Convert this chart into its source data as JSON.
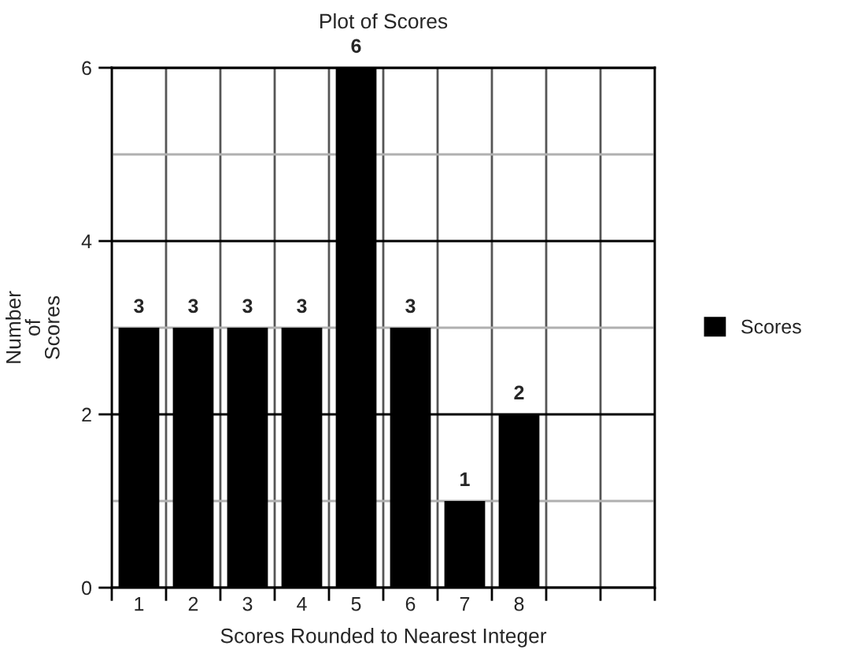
{
  "chart_data": {
    "type": "bar",
    "title": "Plot of Scores",
    "xlabel": "Scores Rounded to Nearest Integer",
    "ylabel": "Number\nof\nScores",
    "categories": [
      "1",
      "2",
      "3",
      "4",
      "5",
      "6",
      "7",
      "8",
      null,
      null
    ],
    "series": [
      {
        "name": "Scores",
        "color": "#000000",
        "values": [
          3,
          3,
          3,
          3,
          6,
          3,
          1,
          2,
          null,
          null
        ]
      }
    ],
    "ylim": [
      0,
      6
    ],
    "yticks": [
      0,
      2,
      4,
      6
    ],
    "grid": true,
    "legend": "right",
    "data_labels": true
  }
}
